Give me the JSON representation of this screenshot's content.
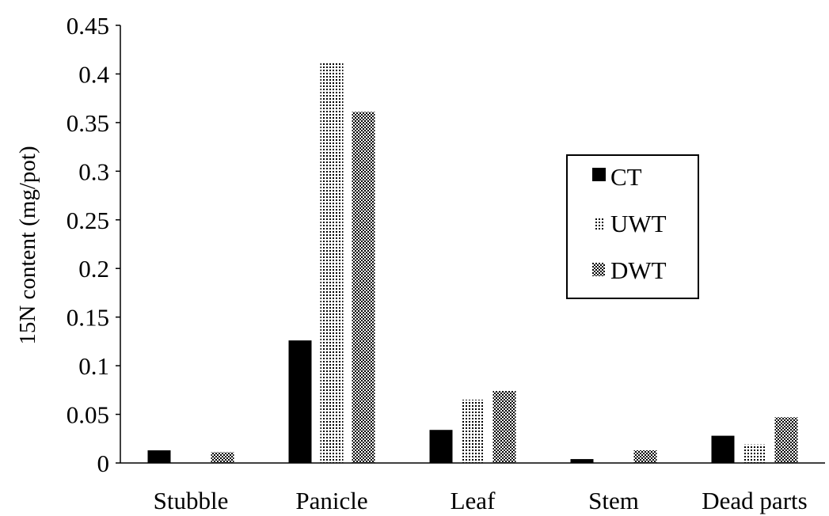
{
  "chart_data": {
    "type": "bar",
    "title": "",
    "xlabel": "",
    "ylabel": "15N  content (mg/pot)",
    "ylim": [
      0,
      0.45
    ],
    "yticks": [
      "0",
      "0.05",
      "0.1",
      "0.15",
      "0.2",
      "0.25",
      "0.3",
      "0.35",
      "0.4",
      "0.45"
    ],
    "categories": [
      "Stubble",
      "Panicle",
      "Leaf",
      "Stem",
      "Dead parts"
    ],
    "series": [
      {
        "name": "CT",
        "values": [
          0.013,
          0.126,
          0.034,
          0.004,
          0.028
        ],
        "pattern": "solid",
        "color": "#000000"
      },
      {
        "name": "UWT",
        "values": [
          0.0,
          0.411,
          0.065,
          0.0,
          0.019
        ],
        "pattern": "dots",
        "color": "#000000"
      },
      {
        "name": "DWT",
        "values": [
          0.011,
          0.361,
          0.074,
          0.013,
          0.047
        ],
        "pattern": "checker",
        "color": "#000000"
      }
    ],
    "grid": false,
    "legend": "right"
  }
}
